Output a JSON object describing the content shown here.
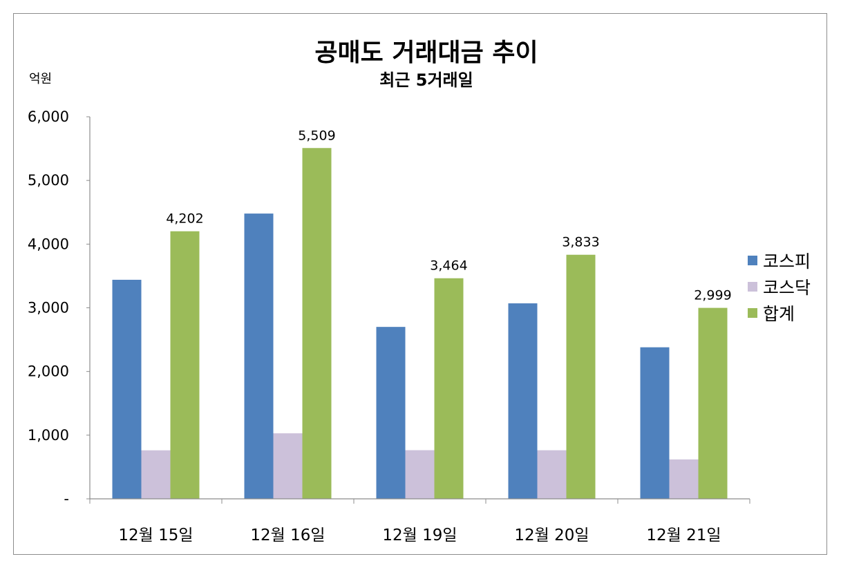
{
  "chart_data": {
    "type": "bar",
    "title": "공매도 거래대금 추이",
    "subtitle": "최근 5거래일",
    "ylabel": "억원",
    "ylim": [
      0,
      6000
    ],
    "yticks": [
      0,
      1000,
      2000,
      3000,
      4000,
      5000,
      6000
    ],
    "ytick_labels": [
      "-",
      "1,000",
      "2,000",
      "3,000",
      "4,000",
      "5,000",
      "6,000"
    ],
    "categories": [
      "12월 15일",
      "12월 16일",
      "12월 19일",
      "12월 20일",
      "12월 21일"
    ],
    "series": [
      {
        "name": "코스피",
        "color": "#4f81bd",
        "values": [
          3440,
          4480,
          2700,
          3070,
          2380
        ]
      },
      {
        "name": "코스닥",
        "color": "#ccc1da",
        "values": [
          762,
          1029,
          764,
          763,
          619
        ]
      },
      {
        "name": "합계",
        "color": "#9bbb59",
        "values": [
          4202,
          5509,
          3464,
          3833,
          2999
        ],
        "data_labels": [
          "4,202",
          "5,509",
          "3,464",
          "3,833",
          "2,999"
        ]
      }
    ],
    "legend_position": "right",
    "grid": false
  }
}
